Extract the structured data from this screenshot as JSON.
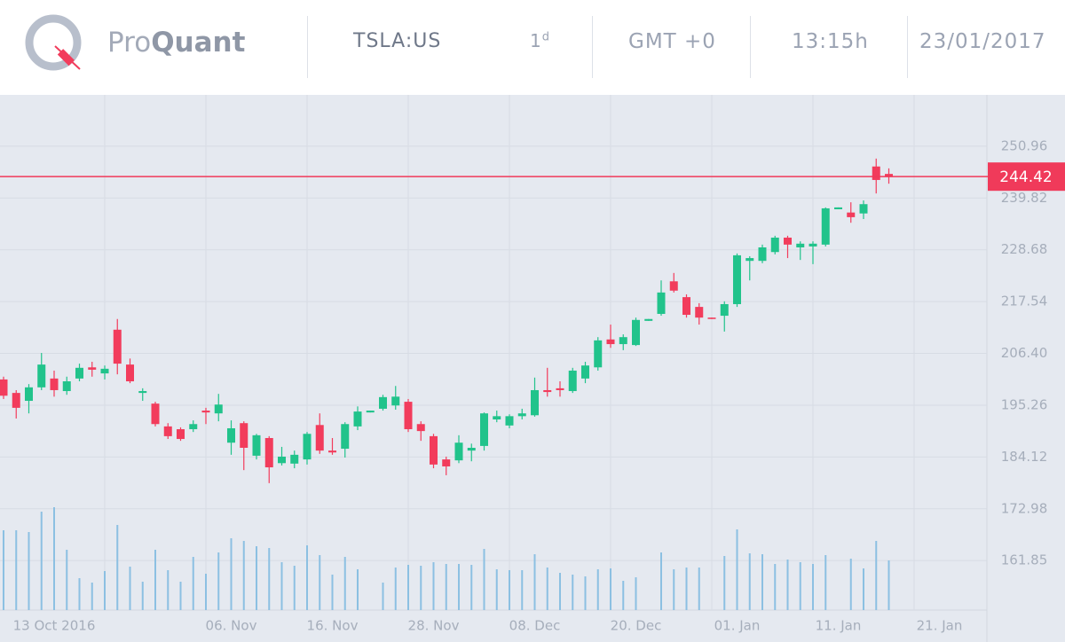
{
  "header": {
    "brand_light": "Pro",
    "brand_bold": "Quant",
    "symbol": "TSLA:US",
    "interval_number": "1",
    "interval_unit": "d",
    "timezone": "GMT +0",
    "time": "13:15h",
    "date": "23/01/2017"
  },
  "chart_data": {
    "type": "candlestick",
    "categories": [
      null,
      null,
      null,
      null,
      "13 Oct 2016",
      null,
      null,
      null,
      null,
      null,
      null,
      null,
      null,
      null,
      null,
      null,
      null,
      null,
      "06. Nov",
      null,
      null,
      null,
      null,
      null,
      null,
      null,
      "16. Nov",
      null,
      null,
      null,
      null,
      null,
      null,
      null,
      "28. Nov",
      null,
      null,
      null,
      null,
      null,
      null,
      null,
      "08. Dec",
      null,
      null,
      null,
      null,
      null,
      null,
      null,
      "20. Dec",
      null,
      null,
      null,
      null,
      null,
      null,
      null,
      "01. Jan",
      null,
      null,
      null,
      null,
      null,
      null,
      null,
      "11. Jan",
      null,
      null,
      null,
      null,
      null,
      null,
      null,
      "21. Jan",
      null,
      null,
      null,
      null
    ],
    "open": [
      200.8,
      197.9,
      196.2,
      199.1,
      201.0,
      198.3,
      201.0,
      203.4,
      202.1,
      211.5,
      204.0,
      197.9,
      195.6,
      190.7,
      190.1,
      190.1,
      194.1,
      193.5,
      187.2,
      191.4,
      184.4,
      188.2,
      182.8,
      182.7,
      183.6,
      191.0,
      185.5,
      185.9,
      190.7,
      193.7,
      194.5,
      195.2,
      196.0,
      191.2,
      188.6,
      183.6,
      183.4,
      185.5,
      186.5,
      192.2,
      190.9,
      192.9,
      193.1,
      198.5,
      198.9,
      198.3,
      201.0,
      203.4,
      209.4,
      208.4,
      208.2,
      213.4,
      214.9,
      221.9,
      218.5,
      216.4,
      214.1,
      214.5,
      217.0,
      226.3,
      226.3,
      228.2,
      231.3,
      229.2,
      229.4,
      229.8,
      237.4,
      236.7,
      236.5,
      246.6,
      245.0,
      null,
      null,
      null,
      null,
      null,
      null,
      null,
      null
    ],
    "high": [
      201.4,
      198.5,
      199.8,
      206.5,
      202.7,
      201.4,
      204.2,
      204.6,
      203.8,
      213.8,
      205.3,
      198.9,
      196.0,
      191.4,
      190.5,
      192.0,
      194.7,
      197.7,
      192.0,
      191.8,
      189.1,
      188.6,
      186.3,
      185.5,
      189.5,
      193.5,
      188.2,
      191.6,
      195.0,
      194.1,
      197.5,
      199.4,
      196.6,
      191.8,
      189.1,
      184.2,
      188.8,
      187.0,
      193.7,
      194.1,
      193.3,
      194.5,
      201.2,
      203.3,
      200.4,
      203.3,
      204.6,
      209.9,
      212.6,
      210.5,
      214.1,
      213.8,
      222.1,
      223.7,
      219.1,
      217.2,
      214.1,
      217.6,
      227.9,
      227.3,
      229.8,
      231.7,
      231.7,
      230.5,
      230.5,
      237.8,
      237.8,
      238.9,
      239.3,
      248.3,
      246.2,
      null,
      null,
      null,
      null,
      null,
      null,
      null,
      null
    ],
    "low": [
      196.6,
      192.4,
      193.5,
      198.5,
      197.1,
      197.5,
      200.4,
      201.4,
      200.8,
      201.9,
      200.0,
      196.2,
      190.7,
      188.0,
      187.6,
      189.5,
      191.2,
      191.8,
      184.6,
      181.3,
      183.6,
      178.5,
      182.3,
      181.7,
      182.5,
      184.8,
      184.6,
      184.0,
      189.9,
      193.7,
      194.1,
      194.3,
      189.5,
      187.6,
      181.7,
      180.2,
      182.8,
      183.2,
      185.5,
      191.6,
      190.3,
      192.2,
      192.8,
      197.1,
      197.1,
      197.9,
      200.0,
      202.7,
      207.6,
      207.1,
      208.0,
      213.4,
      214.5,
      219.5,
      214.1,
      212.6,
      213.8,
      211.1,
      216.4,
      222.1,
      225.8,
      227.7,
      226.9,
      226.5,
      225.6,
      229.4,
      237.4,
      234.5,
      235.3,
      240.8,
      242.9,
      null,
      null,
      null,
      null,
      null,
      null,
      null,
      null
    ],
    "close": [
      197.3,
      194.7,
      199.1,
      204.0,
      198.5,
      200.4,
      203.3,
      202.9,
      203.1,
      204.2,
      200.4,
      198.3,
      191.2,
      188.6,
      188.0,
      191.2,
      193.7,
      195.4,
      190.3,
      186.1,
      188.8,
      181.9,
      184.2,
      184.6,
      189.1,
      185.5,
      185.1,
      191.2,
      193.9,
      194.1,
      197.0,
      197.1,
      190.1,
      189.7,
      182.5,
      182.1,
      187.2,
      186.1,
      193.5,
      192.9,
      192.9,
      193.5,
      198.5,
      198.1,
      198.5,
      202.7,
      203.8,
      209.2,
      208.4,
      209.9,
      213.6,
      213.8,
      219.5,
      219.9,
      214.7,
      214.1,
      213.8,
      217.0,
      227.5,
      226.9,
      229.2,
      231.3,
      229.8,
      230.0,
      230.0,
      237.6,
      237.8,
      235.7,
      238.5,
      243.7,
      244.42,
      null,
      null,
      null,
      null,
      null,
      null,
      null,
      null
    ],
    "volume": [
      90,
      90,
      88,
      111,
      116,
      68,
      36,
      31,
      44,
      96,
      49,
      32,
      68,
      45,
      32,
      60,
      41,
      65,
      81,
      78,
      72,
      70,
      54,
      50,
      73,
      62,
      40,
      60,
      46,
      null,
      31,
      48,
      51,
      50,
      54,
      52,
      52,
      51,
      69,
      46,
      45,
      45,
      63,
      48,
      42,
      40,
      38,
      46,
      47,
      33,
      37,
      null,
      65,
      46,
      48,
      48,
      null,
      61,
      91,
      64,
      63,
      52,
      57,
      54,
      52,
      62,
      null,
      58,
      47,
      78,
      56,
      null,
      null,
      null,
      null,
      null,
      null,
      null,
      null
    ],
    "last_price": {
      "value": 244.42,
      "label": "244.42"
    },
    "ylim": [
      151.2,
      262.0
    ],
    "yticks": [
      161.85,
      172.98,
      184.12,
      195.26,
      {
        "value": 206.4,
        "label": "206.40"
      },
      217.54,
      228.68,
      239.82,
      250.96
    ],
    "grid": true,
    "up_color": "#21c38b",
    "down_color": "#f23c5c",
    "volume_color": "#8cc0e2",
    "price_line_color": "#f03a5a"
  }
}
